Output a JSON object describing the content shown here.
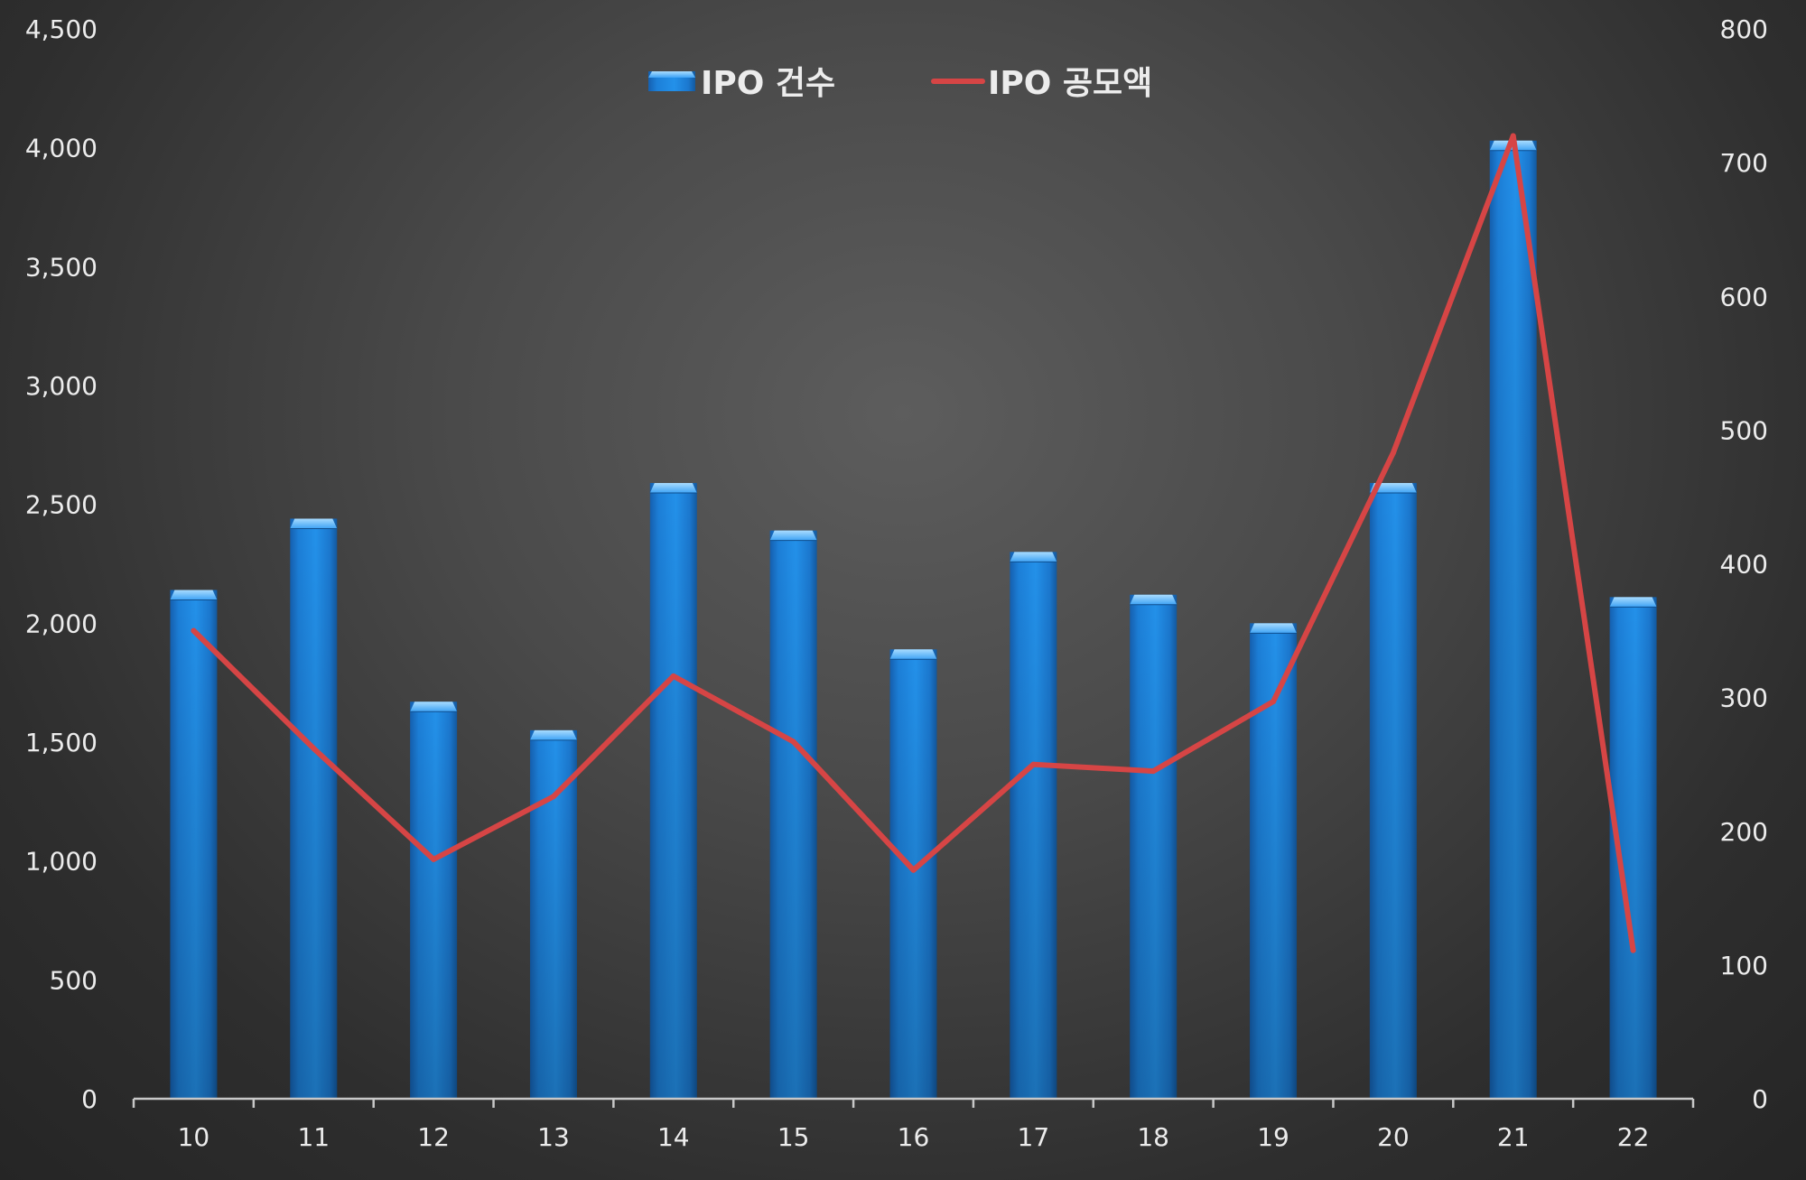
{
  "chart_data": {
    "type": "bar",
    "categories": [
      "10",
      "11",
      "12",
      "13",
      "14",
      "15",
      "16",
      "17",
      "18",
      "19",
      "20",
      "21",
      "22"
    ],
    "series": [
      {
        "name": "IPO 건수",
        "type": "bar",
        "axis": "left",
        "color": "#1e88e5",
        "values": [
          2140,
          2440,
          1670,
          1550,
          2590,
          2390,
          1890,
          2300,
          2120,
          2000,
          2590,
          4030,
          2110
        ]
      },
      {
        "name": "IPO 공모액",
        "type": "line",
        "axis": "right",
        "color": "#d64545",
        "values": [
          350,
          262,
          179,
          226,
          316,
          267,
          171,
          250,
          245,
          297,
          483,
          720,
          111
        ]
      }
    ],
    "y_left": {
      "ylim": [
        0,
        4500
      ],
      "ticks": [
        0,
        500,
        1000,
        1500,
        2000,
        2500,
        3000,
        3500,
        4000,
        4500
      ],
      "tick_labels": [
        "0",
        "500",
        "1,000",
        "1,500",
        "2,000",
        "2,500",
        "3,000",
        "3,500",
        "4,000",
        "4,500"
      ]
    },
    "y_right": {
      "ylim": [
        0,
        800
      ],
      "ticks": [
        0,
        100,
        200,
        300,
        400,
        500,
        600,
        700,
        800
      ],
      "tick_labels": [
        "0",
        "100",
        "200",
        "300",
        "400",
        "500",
        "600",
        "700",
        "800"
      ]
    },
    "grid": false,
    "legend": "top-center",
    "background": "#3a3a3a"
  }
}
